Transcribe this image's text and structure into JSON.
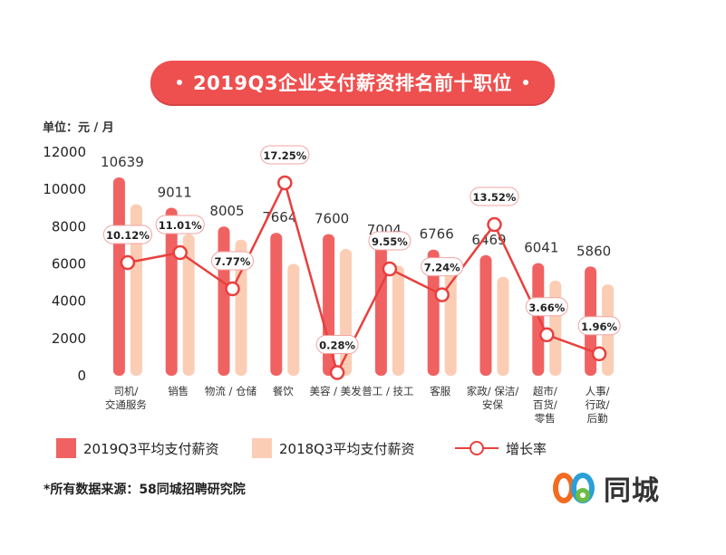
{
  "title": "2019Q3企业支付薪资排名前十职位",
  "unit_label": "单位：元 / 月",
  "source_note": "*所有数据来源：58同城招聘研究院",
  "logo": {
    "icon": "58-logo-icon",
    "text": "同城"
  },
  "colors": {
    "bar2019": "#f06262",
    "bar2018": "#fbcdb5",
    "line": "#e8403e",
    "title_bg": "#ee4f4f"
  },
  "chart_data": {
    "type": "bar",
    "title": "2019Q3企业支付薪资排名前十职位",
    "ylabel": "单位：元 / 月",
    "ylim": [
      0,
      12000
    ],
    "yticks": [
      0,
      2000,
      4000,
      6000,
      8000,
      10000,
      12000
    ],
    "grid": false,
    "legend_position": "bottom-left",
    "categories": [
      [
        "司机/",
        "交通服务"
      ],
      [
        "销售"
      ],
      [
        "物流 / 仓储"
      ],
      [
        "餐饮"
      ],
      [
        "美容 / 美发"
      ],
      [
        "普工 / 技工"
      ],
      [
        "客服"
      ],
      [
        "家政/ 保洁/",
        "安保"
      ],
      [
        "超市/",
        "百货/",
        "零售"
      ],
      [
        "人事/",
        "行政/",
        "后勤"
      ]
    ],
    "series": [
      {
        "name": "2019Q3平均支付薪资",
        "type": "bar",
        "values": [
          10639,
          9011,
          8005,
          7664,
          7600,
          7004,
          6766,
          6469,
          6041,
          5860
        ],
        "labels": [
          "10639",
          "9011",
          "8005",
          "7664",
          "7600",
          "7004",
          "6766",
          "6469",
          "6041",
          "5860"
        ]
      },
      {
        "name": "2018Q3平均支付薪资",
        "type": "bar",
        "values": [
          9200,
          7600,
          7300,
          6000,
          6800,
          5900,
          5800,
          5300,
          5100,
          4900
        ]
      },
      {
        "name": "增长率",
        "type": "line",
        "values": [
          10.12,
          11.01,
          7.77,
          17.25,
          0.28,
          9.55,
          7.24,
          13.52,
          3.66,
          1.96
        ],
        "labels": [
          "10.12%",
          "11.01%",
          "7.77%",
          "17.25%",
          "0.28%",
          "9.55%",
          "7.24%",
          "13.52%",
          "3.66%",
          "1.96%"
        ],
        "axis_range": [
          0,
          20
        ]
      }
    ]
  }
}
